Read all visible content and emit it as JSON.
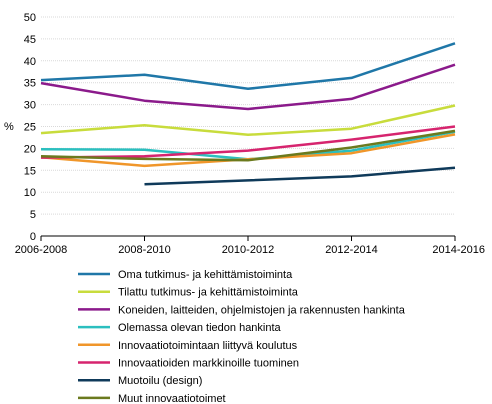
{
  "chart_data": {
    "type": "line",
    "title": "",
    "xlabel": "",
    "ylabel": "%",
    "ylim": [
      0,
      50
    ],
    "yticks": [
      0,
      5,
      10,
      15,
      20,
      25,
      30,
      35,
      40,
      45,
      50
    ],
    "grid": "horizontal",
    "legend_position": "bottom",
    "categories": [
      "2006-2008",
      "2008-2010",
      "2010-2012",
      "2012-2014",
      "2014-2016"
    ],
    "series": [
      {
        "name": "Oma tutkimus- ja kehittämistoiminta",
        "color": "#1f77a8",
        "values": [
          35.6,
          36.8,
          33.6,
          36.1,
          44.0
        ]
      },
      {
        "name": "Tilattu tutkimus- ja kehittämistoiminta",
        "color": "#c8dc3c",
        "values": [
          23.5,
          25.3,
          23.1,
          24.5,
          29.8
        ]
      },
      {
        "name": "Koneiden, laitteiden, ohjelmistojen ja rakennusten hankinta",
        "color": "#8b1a8b",
        "values": [
          34.9,
          30.9,
          29.0,
          31.3,
          39.1
        ]
      },
      {
        "name": "Olemassa olevan tiedon hankinta",
        "color": "#2bbfbf",
        "values": [
          19.8,
          19.7,
          17.5,
          19.5,
          23.8
        ]
      },
      {
        "name": "Innovaatiotoimintaan liittyvä koulutus",
        "color": "#f0962a",
        "values": [
          18.0,
          16.0,
          17.5,
          18.9,
          23.2
        ]
      },
      {
        "name": "Innovaatioiden markkinoille tuominen",
        "color": "#d6246e",
        "values": [
          17.9,
          18.2,
          19.5,
          22.0,
          25.0
        ]
      },
      {
        "name": "Muotoilu (design)",
        "color": "#0f3a5a",
        "values": [
          null,
          11.8,
          12.7,
          13.6,
          15.6
        ]
      },
      {
        "name": "Muut innovaatiotoimet",
        "color": "#6b7a1e",
        "values": [
          18.2,
          17.6,
          17.3,
          20.2,
          24.0
        ]
      }
    ]
  }
}
